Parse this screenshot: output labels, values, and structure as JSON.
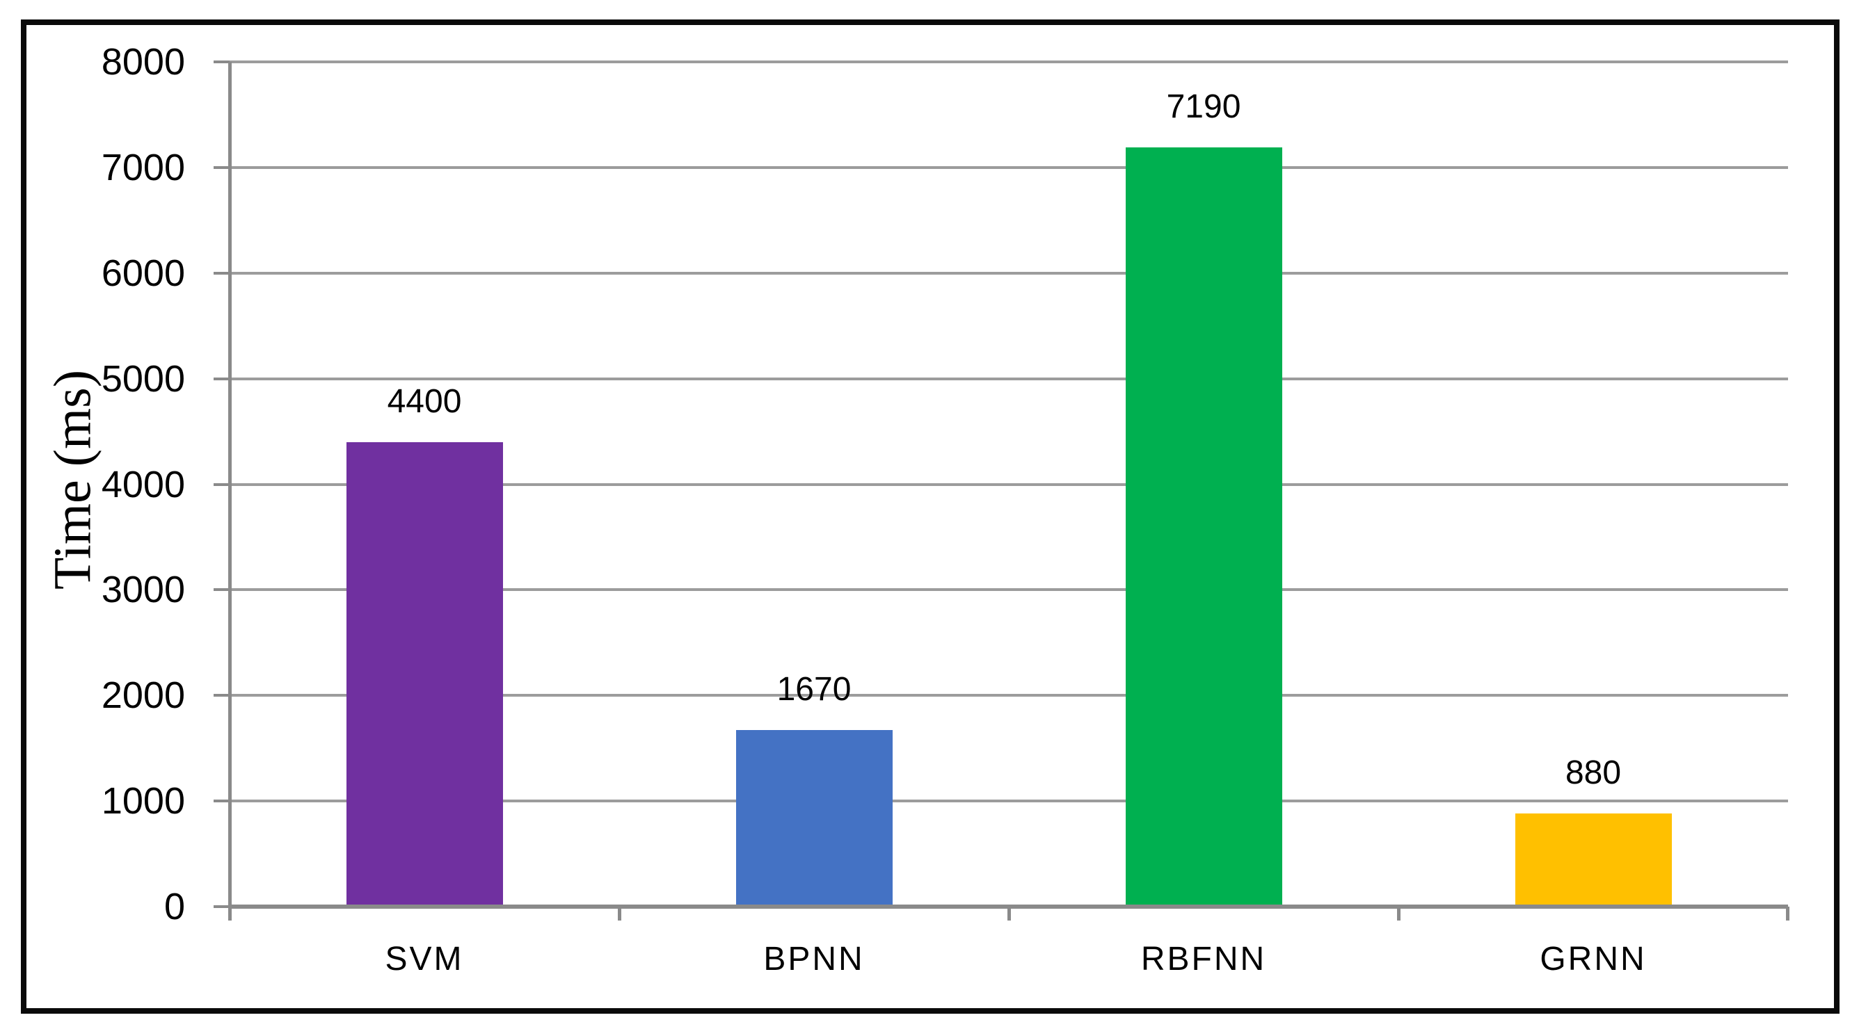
{
  "figure": {
    "background": "#ffffff",
    "border_color": "#0a0a0a"
  },
  "chart_data": {
    "type": "bar",
    "categories": [
      "SVM",
      "BPNN",
      "RBFNN",
      "GRNN"
    ],
    "values": [
      4400,
      1670,
      7190,
      880
    ],
    "data_labels": [
      "4400",
      "1670",
      "7190",
      "880"
    ],
    "bar_colors": [
      "#7030A0",
      "#4472C4",
      "#00B050",
      "#FFC000"
    ],
    "title": "",
    "xlabel": "",
    "ylabel": "Time (ms)",
    "ylim": [
      0,
      8000
    ],
    "yticks": [
      0,
      1000,
      2000,
      3000,
      4000,
      5000,
      6000,
      7000,
      8000
    ],
    "ytick_labels": [
      "0",
      "1000",
      "2000",
      "3000",
      "4000",
      "5000",
      "6000",
      "7000",
      "8000"
    ],
    "grid": "horizontal",
    "legend": "none",
    "gridline_color": "#9c9c9c",
    "axis_color": "#8a8a8a",
    "label_color": "#000000"
  }
}
